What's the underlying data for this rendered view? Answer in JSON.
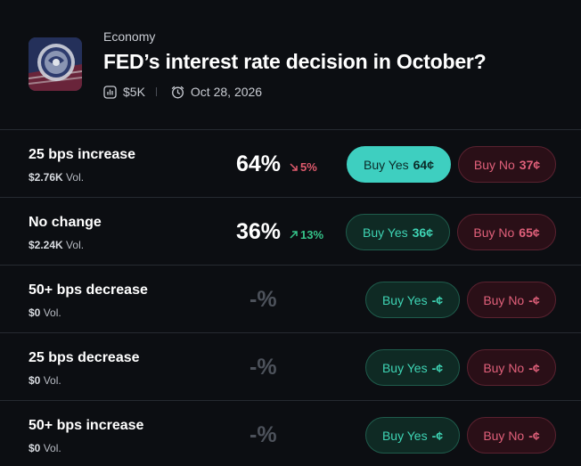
{
  "market": {
    "category": "Economy",
    "title": "FED’s interest rate decision in October?",
    "volume": "$5K",
    "date": "Oct 28, 2026",
    "icons": {
      "thumbnail": "federal-reserve-seal",
      "volume": "chart-icon",
      "date": "alarm-clock-icon"
    }
  },
  "outcomes": [
    {
      "label": "25 bps increase",
      "vol_amount": "$2.76K",
      "vol_suffix": "Vol.",
      "pct": "64%",
      "change": "5%",
      "change_dir": "down",
      "yes_label": "Buy Yes",
      "yes_price": "64¢",
      "no_label": "Buy No",
      "no_price": "37¢",
      "yes_active": true
    },
    {
      "label": "No change",
      "vol_amount": "$2.24K",
      "vol_suffix": "Vol.",
      "pct": "36%",
      "change": "13%",
      "change_dir": "up",
      "yes_label": "Buy Yes",
      "yes_price": "36¢",
      "no_label": "Buy No",
      "no_price": "65¢",
      "yes_active": false
    },
    {
      "label": "50+ bps decrease",
      "vol_amount": "$0",
      "vol_suffix": "Vol.",
      "pct": "-%",
      "change": "",
      "change_dir": "",
      "yes_label": "Buy Yes",
      "yes_price": "-¢",
      "no_label": "Buy No",
      "no_price": "-¢",
      "yes_active": false
    },
    {
      "label": "25 bps decrease",
      "vol_amount": "$0",
      "vol_suffix": "Vol.",
      "pct": "-%",
      "change": "",
      "change_dir": "",
      "yes_label": "Buy Yes",
      "yes_price": "-¢",
      "no_label": "Buy No",
      "no_price": "-¢",
      "yes_active": false
    },
    {
      "label": "50+ bps increase",
      "vol_amount": "$0",
      "vol_suffix": "Vol.",
      "pct": "-%",
      "change": "",
      "change_dir": "",
      "yes_label": "Buy Yes",
      "yes_price": "-¢",
      "no_label": "Buy No",
      "no_price": "-¢",
      "yes_active": false
    }
  ],
  "colors": {
    "background": "#0c0e12",
    "yes_accent": "#3ecfc0",
    "no_accent": "#e0607a",
    "up": "#35c48a",
    "down": "#e05a6d"
  }
}
